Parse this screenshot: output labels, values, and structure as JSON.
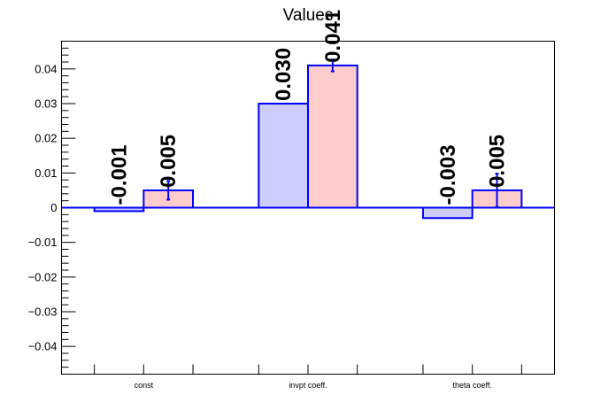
{
  "chart_data": {
    "type": "bar",
    "title": "Values",
    "xlabel": "",
    "ylabel": "",
    "categories": [
      "const",
      "invpt coeff.",
      "theta coeff."
    ],
    "series": [
      {
        "values": [
          -0.001,
          0.03,
          -0.003
        ],
        "labels": [
          "-0.001",
          "0.030",
          "-0.003"
        ],
        "errors": [
          0,
          0,
          0
        ],
        "color": "#ccccff"
      },
      {
        "values": [
          0.005,
          0.041,
          0.005
        ],
        "labels": [
          "0.005",
          "0.041",
          "0.005"
        ],
        "errors": [
          0.0027,
          0.0017,
          0.0048
        ],
        "color": "#ffcccc"
      }
    ],
    "edge_color": "#0000ff",
    "ylim": [
      -0.048,
      0.048
    ],
    "yticks": [
      -0.04,
      -0.03,
      -0.02,
      -0.01,
      0,
      0.01,
      0.02,
      0.03,
      0.04
    ],
    "ytick_labels": [
      "−0.04",
      "−0.03",
      "−0.02",
      "−0.01",
      "0",
      "0.01",
      "0.02",
      "0.03",
      "0.04"
    ],
    "grid": false,
    "legend": "none"
  }
}
